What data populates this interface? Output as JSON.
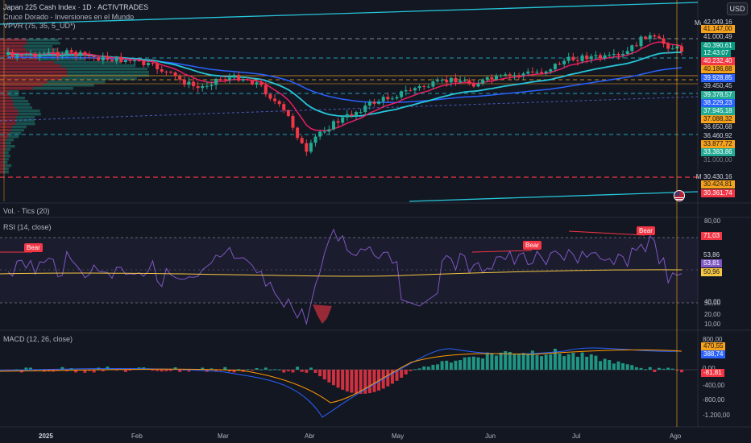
{
  "header": {
    "title": "Japan 225 Cash Index · 1D · ACTIVTRADES",
    "indicator_line_1": "Cruce Dorado - Inversiones en el Mundo",
    "indicator_line_2": "VPVR (75, 35, 5_UD*)",
    "currency_button": "USD"
  },
  "price_axis": {
    "max_label": "Máximo",
    "min_label": "Mínimo",
    "tags": [
      {
        "text": "42.049,16",
        "bg": "#131722",
        "fg": "#d1d4dc"
      },
      {
        "text": "41.147,00",
        "bg": "#f7a21b",
        "fg": "#131722"
      },
      {
        "text": "41.000,49",
        "bg": "#131722",
        "fg": "#d1d4dc"
      },
      {
        "text": "40.390,61",
        "bg": "#089981",
        "fg": "#ffffff"
      },
      {
        "text": "12:43:07",
        "bg": "#089981",
        "fg": "#ffffff"
      },
      {
        "text": "40.232,40",
        "bg": "#f23645",
        "fg": "#ffffff"
      },
      {
        "text": "40.186,88",
        "bg": "#f7a21b",
        "fg": "#131722"
      },
      {
        "text": "39.928,85",
        "bg": "#2962ff",
        "fg": "#ffffff"
      },
      {
        "text": "39.450,45",
        "bg": "#131722",
        "fg": "#d1d4dc"
      },
      {
        "text": "39.378,57",
        "bg": "#22ab94",
        "fg": "#ffffff"
      },
      {
        "text": "38.229,23",
        "bg": "#2962ff",
        "fg": "#ffffff"
      },
      {
        "text": "37.945,18",
        "bg": "#22ab94",
        "fg": "#ffffff"
      },
      {
        "text": "37.088,32",
        "bg": "#f7a21b",
        "fg": "#131722"
      },
      {
        "text": "36.650,68",
        "bg": "#131722",
        "fg": "#d1d4dc"
      },
      {
        "text": "36.460,92",
        "bg": "#131722",
        "fg": "#d1d4dc"
      },
      {
        "text": "33.877,72",
        "bg": "#f7a21b",
        "fg": "#131722"
      },
      {
        "text": "33.383,86",
        "bg": "#22ab94",
        "fg": "#ffffff"
      },
      {
        "text": "31.000,00",
        "bg": "#131722",
        "fg": "#787b86"
      },
      {
        "text": "30.430,16",
        "bg": "#131722",
        "fg": "#d1d4dc"
      },
      {
        "text": "30.424,81",
        "bg": "#f7a21b",
        "fg": "#131722"
      },
      {
        "text": "30.361,74",
        "bg": "#f23645",
        "fg": "#ffffff"
      }
    ]
  },
  "volume_panel": {
    "label": "Vol. · Tics (20)"
  },
  "rsi_panel": {
    "label": "RSI (14, close)",
    "axis": [
      "80,00",
      "40,00",
      "30,00",
      "20,00",
      "10,00"
    ],
    "tags": [
      {
        "text": "71,03",
        "bg": "#f23645",
        "fg": "#ffffff"
      },
      {
        "text": "53,86",
        "bg": "#131722",
        "fg": "#d1d4dc"
      },
      {
        "text": "53,81",
        "bg": "#7e57c2",
        "fg": "#ffffff"
      },
      {
        "text": "50,96",
        "bg": "#f7c843",
        "fg": "#131722"
      }
    ],
    "bear_label": "Bear"
  },
  "macd_panel": {
    "label": "MACD (12, 26, close)",
    "axis": [
      "800,00",
      "0,00",
      "-400,00",
      "-800,00",
      "-1.200,00"
    ],
    "tags": [
      {
        "text": "470,55",
        "bg": "#f7a21b",
        "fg": "#131722"
      },
      {
        "text": "388,74",
        "bg": "#2962ff",
        "fg": "#ffffff"
      },
      {
        "text": "-81,81",
        "bg": "#f23645",
        "fg": "#ffffff"
      }
    ]
  },
  "time_axis": [
    "2025",
    "Feb",
    "Mar",
    "Abr",
    "May",
    "Jun",
    "Jul",
    "Ago"
  ],
  "colors": {
    "background": "#131722",
    "up": "#22ab94",
    "down": "#f23645",
    "ema_fast": "#e91e63",
    "ema_slow": "#26c6da",
    "sma": "#2962ff",
    "rsi": "#7e57c2",
    "rsi_ma": "#f7c843",
    "macd": "#2962ff",
    "signal": "#ff9800",
    "channel": "#26c6da"
  }
}
